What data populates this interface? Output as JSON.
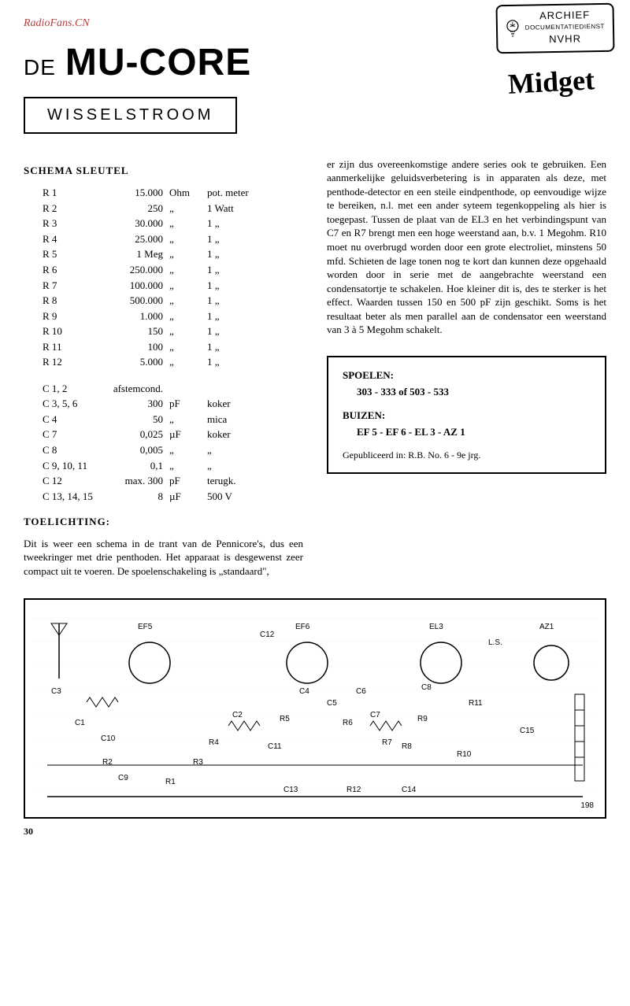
{
  "watermark": "RadioFans.CN",
  "stamp": {
    "line1": "ARCHIEF",
    "line2": "DOCUMENTATIEDIENST",
    "line3": "NVHR"
  },
  "title": {
    "de": "DE",
    "main": "MU-CORE",
    "midget": "Midget"
  },
  "subtitle": "WISSELSTROOM",
  "schema_title": "SCHEMA SLEUTEL",
  "resistors": [
    {
      "ref": "R 1",
      "val": "15.000",
      "unit": "Ohm",
      "note": "pot. meter"
    },
    {
      "ref": "R 2",
      "val": "250",
      "unit": "„",
      "note": "1 Watt"
    },
    {
      "ref": "R 3",
      "val": "30.000",
      "unit": "„",
      "note": "1   „"
    },
    {
      "ref": "R 4",
      "val": "25.000",
      "unit": "„",
      "note": "1   „"
    },
    {
      "ref": "R 5",
      "val": "1 Meg",
      "unit": "„",
      "note": "1   „"
    },
    {
      "ref": "R 6",
      "val": "250.000",
      "unit": "„",
      "note": "1   „"
    },
    {
      "ref": "R 7",
      "val": "100.000",
      "unit": "„",
      "note": "1   „"
    },
    {
      "ref": "R 8",
      "val": "500.000",
      "unit": "„",
      "note": "1   „"
    },
    {
      "ref": "R 9",
      "val": "1.000",
      "unit": "„",
      "note": "1   „"
    },
    {
      "ref": "R 10",
      "val": "150",
      "unit": "„",
      "note": "1   „"
    },
    {
      "ref": "R 11",
      "val": "100",
      "unit": "„",
      "note": "1   „"
    },
    {
      "ref": "R 12",
      "val": "5.000",
      "unit": "„",
      "note": "1   „"
    }
  ],
  "capacitors": [
    {
      "ref": "C 1, 2",
      "val": "afstemcond.",
      "unit": "",
      "note": ""
    },
    {
      "ref": "C 3, 5, 6",
      "val": "300",
      "unit": "pF",
      "note": "koker"
    },
    {
      "ref": "C 4",
      "val": "50",
      "unit": "„",
      "note": "mica"
    },
    {
      "ref": "C 7",
      "val": "0,025",
      "unit": "µF",
      "note": "koker"
    },
    {
      "ref": "C 8",
      "val": "0,005",
      "unit": "„",
      "note": "„"
    },
    {
      "ref": "C 9, 10, 11",
      "val": "0,1",
      "unit": "„",
      "note": "„"
    },
    {
      "ref": "C 12",
      "val": "max. 300",
      "unit": "pF",
      "note": "terugk."
    },
    {
      "ref": "C 13, 14, 15",
      "val": "8",
      "unit": "µF",
      "note": "500 V"
    }
  ],
  "toelichting_title": "TOELICHTING:",
  "toelichting_left": "Dit is weer een schema in de trant van de Pennicore's, dus een tweekringer met drie penthoden. Het apparaat is desgewenst zeer compact uit te voeren. De spoelenschakeling is „standaard\",",
  "body_right": "er zijn dus overeenkomstige andere series ook te gebruiken. Een aanmerkelijke geluidsverbetering is in apparaten als deze, met penthode-detector en een steile eindpenthode, op eenvoudige wijze te bereiken, n.l. met een ander syteem tegenkoppeling als hier is toegepast. Tussen de plaat van de EL3 en het verbindingspunt van C7 en R7 brengt men een hoge weerstand aan, b.v. 1 Megohm. R10 moet nu overbrugd worden door een grote electroliet, minstens 50 mfd. Schieten de lage tonen nog te kort dan kunnen deze opgehaald worden door in serie met de aangebrachte weerstand een condensatortje te schakelen. Hoe kleiner dit is, des te sterker is het effect. Waarden tussen 150 en 500 pF zijn geschikt. Soms is het resultaat beter als men parallel aan de condensator een weerstand van 3 à 5 Megohm schakelt.",
  "info_box": {
    "spoelen_label": "SPOELEN:",
    "spoelen": "303 - 333 of 503 - 533",
    "buizen_label": "BUIZEN:",
    "buizen": "EF 5 - EF 6 - EL 3 - AZ 1",
    "pub": "Gepubliceerd in: R.B. No. 6 - 9e jrg."
  },
  "schematic": {
    "tubes": [
      "EF5",
      "EF6",
      "EL3",
      "AZ1"
    ],
    "labels": [
      "C3",
      "C1",
      "C10",
      "R2",
      "C9",
      "R1",
      "R3",
      "R4",
      "C2",
      "C11",
      "R5",
      "C4",
      "C5",
      "R6",
      "C6",
      "C7",
      "R7",
      "R8",
      "C12",
      "R9",
      "C8",
      "R11",
      "R10",
      "L.S.",
      "C15",
      "C13",
      "R12",
      "C14"
    ],
    "fig_num": "198"
  },
  "page_number": "30"
}
